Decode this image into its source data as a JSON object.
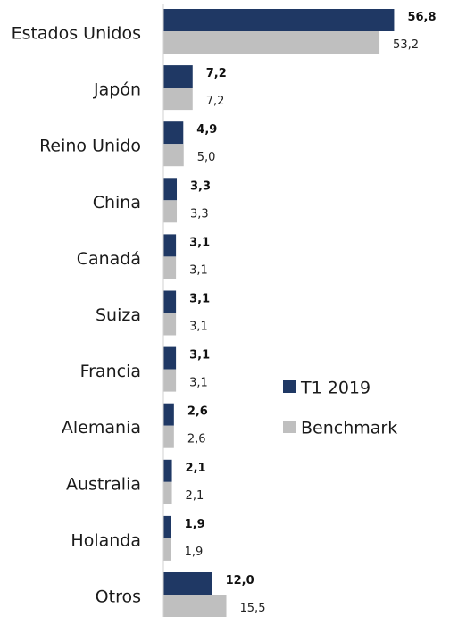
{
  "chart_data": {
    "type": "bar",
    "orientation": "horizontal",
    "categories": [
      "Estados Unidos",
      "Japón",
      "Reino Unido",
      "China",
      "Canadá",
      "Suiza",
      "Francia",
      "Alemania",
      "Australia",
      "Holanda",
      "Otros"
    ],
    "series": [
      {
        "name": "T1 2019",
        "color": "#1f3864",
        "values": [
          56.8,
          7.2,
          4.9,
          3.3,
          3.1,
          3.1,
          3.1,
          2.6,
          2.1,
          1.9,
          12.0
        ],
        "labels": [
          "56,8",
          "7,2",
          "4,9",
          "3,3",
          "3,1",
          "3,1",
          "3,1",
          "2,6",
          "2,1",
          "1,9",
          "12,0"
        ]
      },
      {
        "name": "Benchmark",
        "color": "#bfbfbf",
        "values": [
          53.2,
          7.2,
          5.0,
          3.3,
          3.1,
          3.1,
          3.1,
          2.6,
          2.1,
          1.9,
          15.5
        ],
        "labels": [
          "53,2",
          "7,2",
          "5,0",
          "3,3",
          "3,1",
          "3,1",
          "3,1",
          "2,6",
          "2,1",
          "1,9",
          "15,5"
        ]
      }
    ],
    "legend": {
      "position": "right"
    },
    "grid": false,
    "title": "",
    "xlabel": "",
    "ylabel": ""
  }
}
